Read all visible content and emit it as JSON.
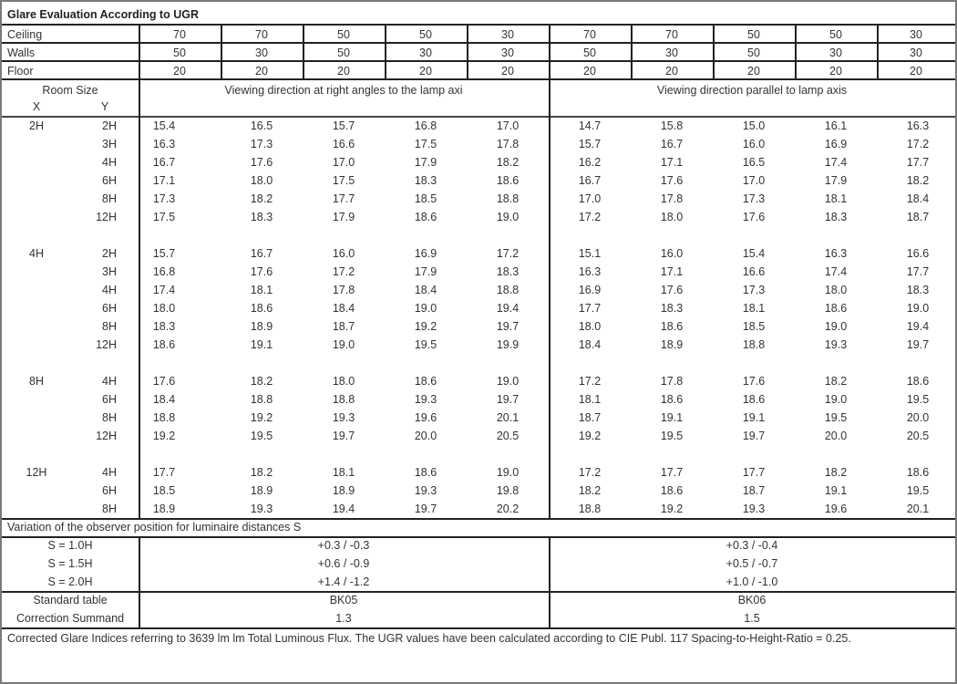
{
  "title": "Glare Evaluation According to UGR",
  "reflectances": [
    {
      "label": "Ceiling",
      "values": [
        "70",
        "70",
        "50",
        "50",
        "30",
        "70",
        "70",
        "50",
        "50",
        "30"
      ]
    },
    {
      "label": "Walls",
      "values": [
        "50",
        "30",
        "50",
        "30",
        "30",
        "50",
        "30",
        "50",
        "30",
        "30"
      ]
    },
    {
      "label": "Floor",
      "values": [
        "20",
        "20",
        "20",
        "20",
        "20",
        "20",
        "20",
        "20",
        "20",
        "20"
      ]
    }
  ],
  "room_size_label": "Room Size",
  "x_label": "X",
  "y_label": "Y",
  "perpendicular_header": "Viewing direction at right angles to the lamp axi",
  "parallel_header": "Viewing direction parallel to lamp axis",
  "groups": [
    {
      "x": "2H",
      "rows": [
        {
          "y": "2H",
          "perp": [
            "15.4",
            "16.5",
            "15.7",
            "16.8",
            "17.0"
          ],
          "par": [
            "14.7",
            "15.8",
            "15.0",
            "16.1",
            "16.3"
          ]
        },
        {
          "y": "3H",
          "perp": [
            "16.3",
            "17.3",
            "16.6",
            "17.5",
            "17.8"
          ],
          "par": [
            "15.7",
            "16.7",
            "16.0",
            "16.9",
            "17.2"
          ]
        },
        {
          "y": "4H",
          "perp": [
            "16.7",
            "17.6",
            "17.0",
            "17.9",
            "18.2"
          ],
          "par": [
            "16.2",
            "17.1",
            "16.5",
            "17.4",
            "17.7"
          ]
        },
        {
          "y": "6H",
          "perp": [
            "17.1",
            "18.0",
            "17.5",
            "18.3",
            "18.6"
          ],
          "par": [
            "16.7",
            "17.6",
            "17.0",
            "17.9",
            "18.2"
          ]
        },
        {
          "y": "8H",
          "perp": [
            "17.3",
            "18.2",
            "17.7",
            "18.5",
            "18.8"
          ],
          "par": [
            "17.0",
            "17.8",
            "17.3",
            "18.1",
            "18.4"
          ]
        },
        {
          "y": "12H",
          "perp": [
            "17.5",
            "18.3",
            "17.9",
            "18.6",
            "19.0"
          ],
          "par": [
            "17.2",
            "18.0",
            "17.6",
            "18.3",
            "18.7"
          ]
        }
      ]
    },
    {
      "x": "4H",
      "rows": [
        {
          "y": "2H",
          "perp": [
            "15.7",
            "16.7",
            "16.0",
            "16.9",
            "17.2"
          ],
          "par": [
            "15.1",
            "16.0",
            "15.4",
            "16.3",
            "16.6"
          ]
        },
        {
          "y": "3H",
          "perp": [
            "16.8",
            "17.6",
            "17.2",
            "17.9",
            "18.3"
          ],
          "par": [
            "16.3",
            "17.1",
            "16.6",
            "17.4",
            "17.7"
          ]
        },
        {
          "y": "4H",
          "perp": [
            "17.4",
            "18.1",
            "17.8",
            "18.4",
            "18.8"
          ],
          "par": [
            "16.9",
            "17.6",
            "17.3",
            "18.0",
            "18.3"
          ]
        },
        {
          "y": "6H",
          "perp": [
            "18.0",
            "18.6",
            "18.4",
            "19.0",
            "19.4"
          ],
          "par": [
            "17.7",
            "18.3",
            "18.1",
            "18.6",
            "19.0"
          ]
        },
        {
          "y": "8H",
          "perp": [
            "18.3",
            "18.9",
            "18.7",
            "19.2",
            "19.7"
          ],
          "par": [
            "18.0",
            "18.6",
            "18.5",
            "19.0",
            "19.4"
          ]
        },
        {
          "y": "12H",
          "perp": [
            "18.6",
            "19.1",
            "19.0",
            "19.5",
            "19.9"
          ],
          "par": [
            "18.4",
            "18.9",
            "18.8",
            "19.3",
            "19.7"
          ]
        }
      ]
    },
    {
      "x": "8H",
      "rows": [
        {
          "y": "4H",
          "perp": [
            "17.6",
            "18.2",
            "18.0",
            "18.6",
            "19.0"
          ],
          "par": [
            "17.2",
            "17.8",
            "17.6",
            "18.2",
            "18.6"
          ]
        },
        {
          "y": "6H",
          "perp": [
            "18.4",
            "18.8",
            "18.8",
            "19.3",
            "19.7"
          ],
          "par": [
            "18.1",
            "18.6",
            "18.6",
            "19.0",
            "19.5"
          ]
        },
        {
          "y": "8H",
          "perp": [
            "18.8",
            "19.2",
            "19.3",
            "19.6",
            "20.1"
          ],
          "par": [
            "18.7",
            "19.1",
            "19.1",
            "19.5",
            "20.0"
          ]
        },
        {
          "y": "12H",
          "perp": [
            "19.2",
            "19.5",
            "19.7",
            "20.0",
            "20.5"
          ],
          "par": [
            "19.2",
            "19.5",
            "19.7",
            "20.0",
            "20.5"
          ]
        }
      ]
    },
    {
      "x": "12H",
      "rows": [
        {
          "y": "4H",
          "perp": [
            "17.7",
            "18.2",
            "18.1",
            "18.6",
            "19.0"
          ],
          "par": [
            "17.2",
            "17.7",
            "17.7",
            "18.2",
            "18.6"
          ]
        },
        {
          "y": "6H",
          "perp": [
            "18.5",
            "18.9",
            "18.9",
            "19.3",
            "19.8"
          ],
          "par": [
            "18.2",
            "18.6",
            "18.7",
            "19.1",
            "19.5"
          ]
        },
        {
          "y": "8H",
          "perp": [
            "18.9",
            "19.3",
            "19.4",
            "19.7",
            "20.2"
          ],
          "par": [
            "18.8",
            "19.2",
            "19.3",
            "19.6",
            "20.1"
          ]
        }
      ]
    }
  ],
  "variation_header": "Variation of the observer position for luminaire distances S",
  "variations": [
    {
      "label": "S = 1.0H",
      "perp": "+0.3 / -0.3",
      "par": "+0.3 / -0.4"
    },
    {
      "label": "S = 1.5H",
      "perp": "+0.6 / -0.9",
      "par": "+0.5 / -0.7"
    },
    {
      "label": "S = 2.0H",
      "perp": "+1.4 / -1.2",
      "par": "+1.0 / -1.0"
    }
  ],
  "standard_table": {
    "label": "Standard table",
    "perp": "BK05",
    "par": "BK06"
  },
  "correction_summand": {
    "label": "Correction Summand",
    "perp": "1.3",
    "par": "1.5"
  },
  "footer_note": "Corrected Glare Indices referring to 3639 lm lm Total Luminous Flux. The UGR values have been calculated according to CIE Publ. 117    Spacing-to-Height-Ratio = 0.25."
}
